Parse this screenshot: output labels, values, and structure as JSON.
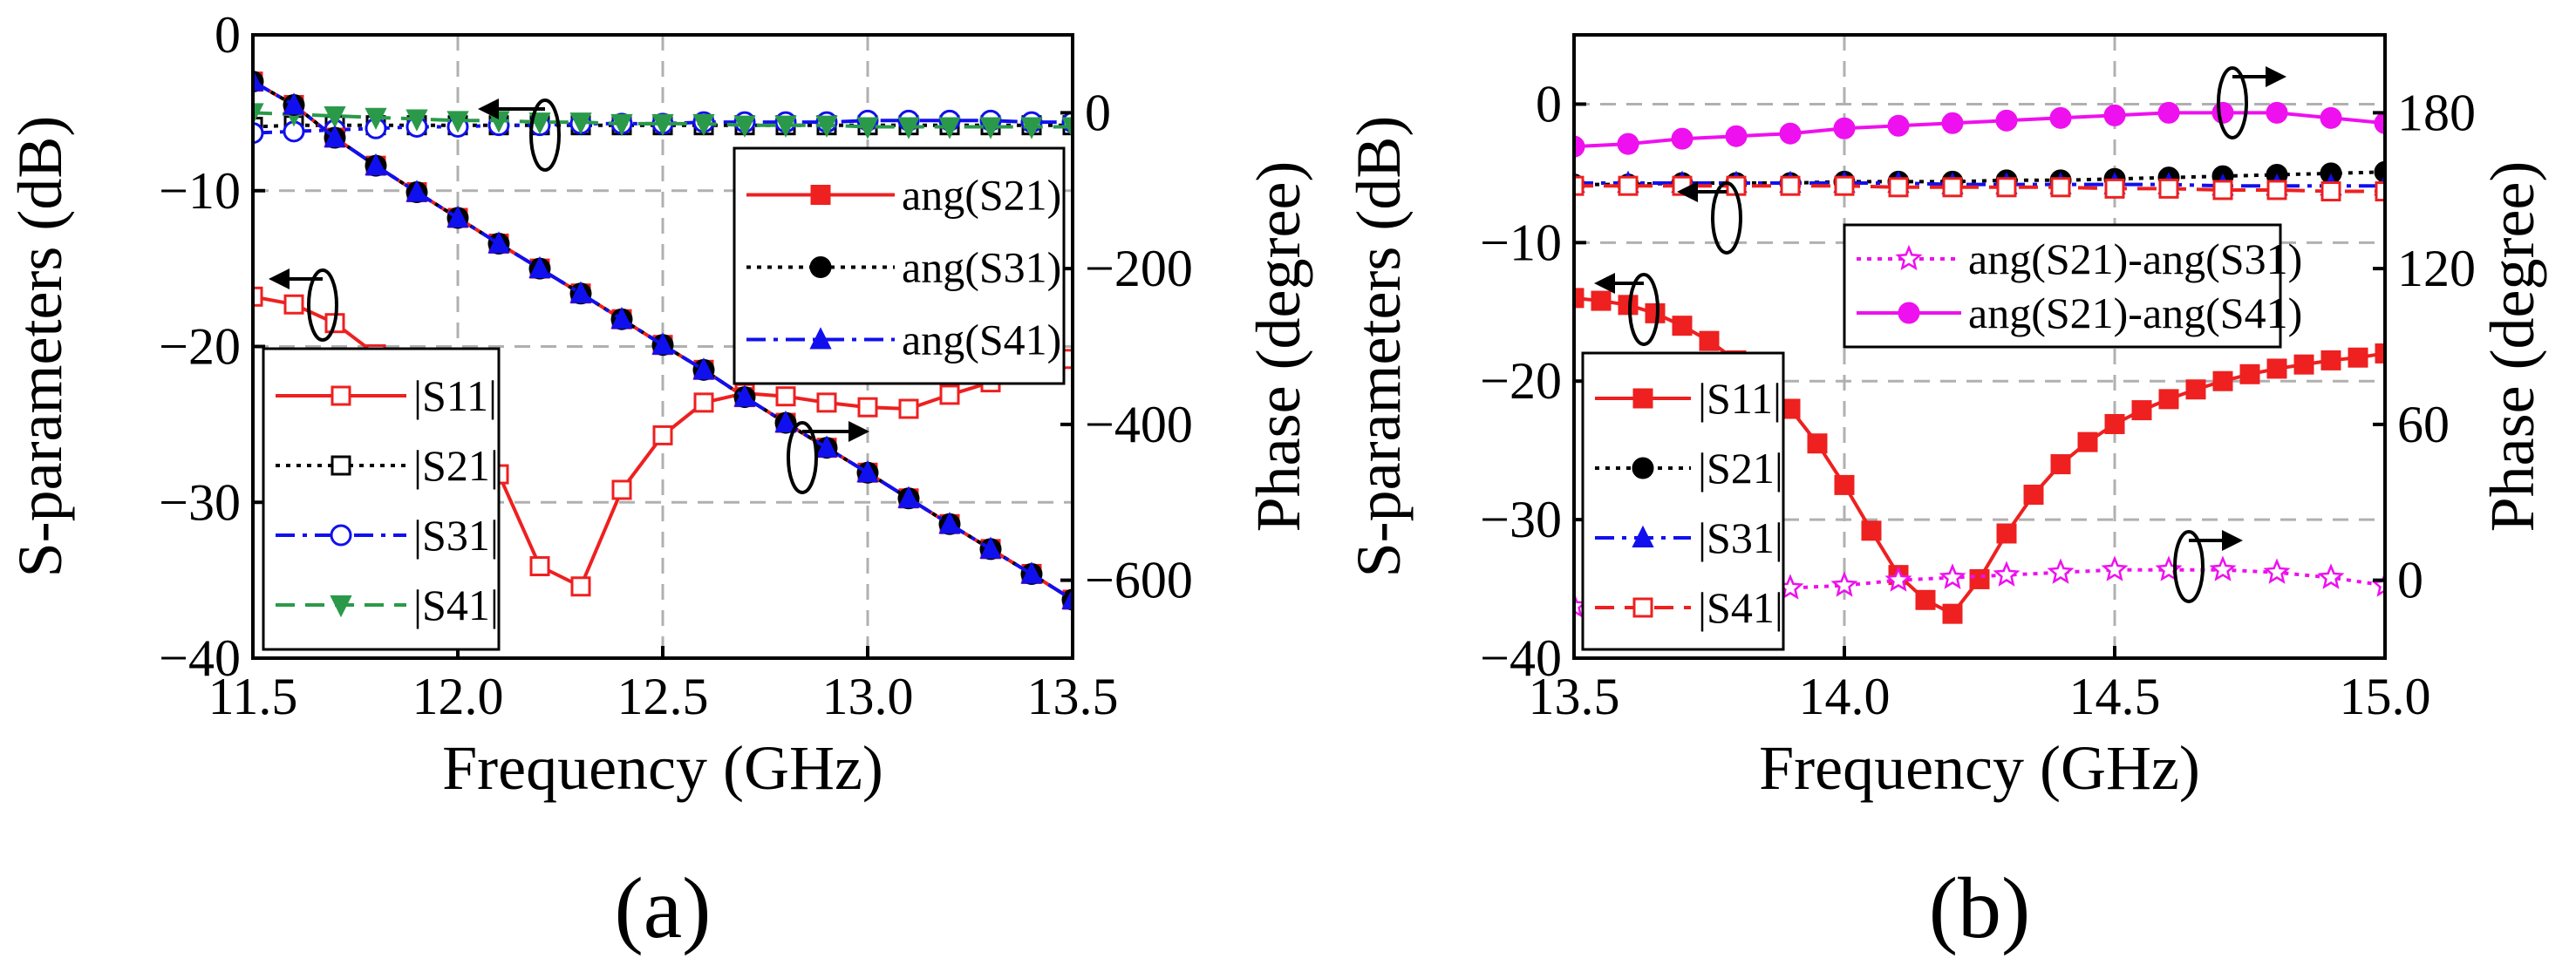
{
  "colors": {
    "red": "#ee2020",
    "black": "#000000",
    "blue": "#1010ee",
    "green": "#2a9a4a",
    "magenta": "#ee10ee",
    "grid": "#b0b0b0"
  },
  "chart_data": [
    {
      "type": "line",
      "caption": "(a)",
      "xlabel": "Frequency (GHz)",
      "ylabel": "S-parameters (dB)",
      "y2label": "Phase (degree)",
      "xlim": [
        11.5,
        13.5
      ],
      "ylim": [
        -40,
        0
      ],
      "y2lim": [
        -700,
        100
      ],
      "xticks": [
        "11.5",
        "12.0",
        "12.5",
        "13.0",
        "13.5"
      ],
      "yticks": [
        "0",
        "−10",
        "−20",
        "−30",
        "−40"
      ],
      "y2ticks": [
        "0",
        "−200",
        "−400",
        "−600"
      ],
      "grid": true,
      "legends": [
        {
          "position": "lower-left",
          "entries": [
            "|S11|",
            "|S21|",
            "|S31|",
            "|S41|"
          ]
        },
        {
          "position": "upper-right",
          "entries": [
            "ang(S21)",
            "ang(S31)",
            "ang(S41)"
          ]
        }
      ],
      "series": [
        {
          "name": "|S11|",
          "axis": "left",
          "color": "red",
          "dash": "solid",
          "marker": "square-open",
          "x": [
            11.5,
            11.6,
            11.7,
            11.8,
            11.9,
            12.0,
            12.1,
            12.2,
            12.3,
            12.4,
            12.5,
            12.6,
            12.7,
            12.8,
            12.9,
            13.0,
            13.1,
            13.2,
            13.3,
            13.4,
            13.5
          ],
          "y": [
            -16.8,
            -17.3,
            -18.5,
            -20.5,
            -22.6,
            -25.4,
            -28.2,
            -34.1,
            -35.4,
            -29.2,
            -25.7,
            -23.6,
            -23.0,
            -23.2,
            -23.6,
            -23.9,
            -24.0,
            -23.1,
            -22.3,
            -21.8,
            -20.8
          ]
        },
        {
          "name": "|S21|",
          "axis": "left",
          "color": "black",
          "dash": "dotted",
          "marker": "square-open",
          "x": [
            11.5,
            11.6,
            11.7,
            11.8,
            11.9,
            12.0,
            12.1,
            12.2,
            12.3,
            12.4,
            12.5,
            12.6,
            12.7,
            12.8,
            12.9,
            13.0,
            13.1,
            13.2,
            13.3,
            13.4,
            13.5
          ],
          "y": [
            -5.9,
            -5.8,
            -5.8,
            -5.8,
            -5.8,
            -5.8,
            -5.8,
            -5.8,
            -5.8,
            -5.8,
            -5.8,
            -5.8,
            -5.8,
            -5.8,
            -5.8,
            -5.8,
            -5.8,
            -5.8,
            -5.8,
            -5.8,
            -5.8
          ]
        },
        {
          "name": "|S31|",
          "axis": "left",
          "color": "blue",
          "dash": "dashdot",
          "marker": "circle-open",
          "x": [
            11.5,
            11.6,
            11.7,
            11.8,
            11.9,
            12.0,
            12.1,
            12.2,
            12.3,
            12.4,
            12.5,
            12.6,
            12.7,
            12.8,
            12.9,
            13.0,
            13.1,
            13.2,
            13.3,
            13.4,
            13.5
          ],
          "y": [
            -6.3,
            -6.2,
            -6.1,
            -6.0,
            -5.9,
            -5.9,
            -5.8,
            -5.8,
            -5.7,
            -5.7,
            -5.7,
            -5.6,
            -5.6,
            -5.6,
            -5.6,
            -5.5,
            -5.5,
            -5.5,
            -5.5,
            -5.6,
            -5.6
          ]
        },
        {
          "name": "|S41|",
          "axis": "left",
          "color": "green",
          "dash": "dashed",
          "marker": "triangle-down",
          "x": [
            11.5,
            11.6,
            11.7,
            11.8,
            11.9,
            12.0,
            12.1,
            12.2,
            12.3,
            12.4,
            12.5,
            12.6,
            12.7,
            12.8,
            12.9,
            13.0,
            13.1,
            13.2,
            13.3,
            13.4,
            13.5
          ],
          "y": [
            -5.0,
            -5.1,
            -5.2,
            -5.3,
            -5.4,
            -5.5,
            -5.5,
            -5.6,
            -5.6,
            -5.7,
            -5.7,
            -5.7,
            -5.8,
            -5.8,
            -5.8,
            -5.9,
            -5.9,
            -5.9,
            -5.9,
            -5.9,
            -5.9
          ]
        },
        {
          "name": "ang(S21)",
          "axis": "right",
          "color": "red",
          "dash": "solid",
          "marker": "square-filled",
          "x": [
            11.5,
            11.6,
            11.7,
            11.8,
            11.9,
            12.0,
            12.1,
            12.2,
            12.3,
            12.4,
            12.5,
            12.6,
            12.7,
            12.8,
            12.9,
            13.0,
            13.1,
            13.2,
            13.3,
            13.4,
            13.5
          ],
          "y": [
            40,
            10,
            -32,
            -68,
            -102,
            -135,
            -168,
            -200,
            -232,
            -265,
            -298,
            -330,
            -365,
            -398,
            -430,
            -462,
            -495,
            -528,
            -560,
            -592,
            -625
          ]
        },
        {
          "name": "ang(S31)",
          "axis": "right",
          "color": "black",
          "dash": "dotted",
          "marker": "circle-filled",
          "x": [
            11.5,
            11.6,
            11.7,
            11.8,
            11.9,
            12.0,
            12.1,
            12.2,
            12.3,
            12.4,
            12.5,
            12.6,
            12.7,
            12.8,
            12.9,
            13.0,
            13.1,
            13.2,
            13.3,
            13.4,
            13.5
          ],
          "y": [
            40,
            10,
            -32,
            -68,
            -102,
            -135,
            -168,
            -200,
            -232,
            -265,
            -298,
            -330,
            -365,
            -398,
            -430,
            -462,
            -495,
            -528,
            -560,
            -592,
            -625
          ]
        },
        {
          "name": "ang(S41)",
          "axis": "right",
          "color": "blue",
          "dash": "dashdot",
          "marker": "triangle-up",
          "x": [
            11.5,
            11.6,
            11.7,
            11.8,
            11.9,
            12.0,
            12.1,
            12.2,
            12.3,
            12.4,
            12.5,
            12.6,
            12.7,
            12.8,
            12.9,
            13.0,
            13.1,
            13.2,
            13.3,
            13.4,
            13.5
          ],
          "y": [
            40,
            10,
            -32,
            -68,
            -102,
            -135,
            -168,
            -200,
            -232,
            -265,
            -298,
            -330,
            -365,
            -398,
            -430,
            -462,
            -495,
            -528,
            -560,
            -592,
            -625
          ]
        }
      ]
    },
    {
      "type": "line",
      "caption": "(b)",
      "xlabel": "Frequency (GHz)",
      "ylabel": "S-parameters (dB)",
      "y2label": "Phase (degree)",
      "xlim": [
        13.5,
        15.0
      ],
      "ylim": [
        -40,
        5
      ],
      "y2lim": [
        -30,
        210
      ],
      "xticks": [
        "13.5",
        "14.0",
        "14.5",
        "15.0"
      ],
      "yticks": [
        "0",
        "−10",
        "−20",
        "−30",
        "−40"
      ],
      "y2ticks": [
        "0",
        "60",
        "120",
        "180"
      ],
      "grid": true,
      "legends": [
        {
          "position": "upper-right",
          "entries": [
            "ang(S21)-ang(S31)",
            "ang(S21)-ang(S41)"
          ]
        },
        {
          "position": "lower-left",
          "entries": [
            "|S11|",
            "|S21|",
            "|S31|",
            "|S41|"
          ]
        }
      ],
      "series": [
        {
          "name": "|S11|",
          "axis": "left",
          "color": "red",
          "dash": "solid",
          "marker": "square-filled",
          "x": [
            13.5,
            13.55,
            13.6,
            13.65,
            13.7,
            13.75,
            13.8,
            13.85,
            13.9,
            13.95,
            14.0,
            14.05,
            14.1,
            14.15,
            14.2,
            14.25,
            14.3,
            14.35,
            14.4,
            14.45,
            14.5,
            14.55,
            14.6,
            14.65,
            14.7,
            14.75,
            14.8,
            14.85,
            14.9,
            14.95,
            15.0
          ],
          "y": [
            -14.0,
            -14.2,
            -14.5,
            -15.1,
            -16.0,
            -17.1,
            -18.5,
            -20.0,
            -22.0,
            -24.5,
            -27.5,
            -30.8,
            -34.0,
            -35.8,
            -36.8,
            -34.3,
            -31.0,
            -28.2,
            -26.0,
            -24.4,
            -23.1,
            -22.1,
            -21.3,
            -20.6,
            -20.0,
            -19.5,
            -19.1,
            -18.8,
            -18.5,
            -18.3,
            -18.0
          ]
        },
        {
          "name": "|S21|",
          "axis": "left",
          "color": "black",
          "dash": "dotted",
          "marker": "circle-filled",
          "x": [
            13.5,
            13.6,
            13.7,
            13.8,
            13.9,
            14.0,
            14.1,
            14.2,
            14.3,
            14.4,
            14.5,
            14.6,
            14.7,
            14.8,
            14.9,
            15.0
          ],
          "y": [
            -5.8,
            -5.8,
            -5.7,
            -5.7,
            -5.7,
            -5.6,
            -5.6,
            -5.6,
            -5.5,
            -5.5,
            -5.4,
            -5.3,
            -5.2,
            -5.1,
            -5.0,
            -4.9
          ]
        },
        {
          "name": "|S31|",
          "axis": "left",
          "color": "blue",
          "dash": "dashdot",
          "marker": "triangle-up",
          "x": [
            13.5,
            13.6,
            13.7,
            13.8,
            13.9,
            14.0,
            14.1,
            14.2,
            14.3,
            14.4,
            14.5,
            14.6,
            14.7,
            14.8,
            14.9,
            15.0
          ],
          "y": [
            -5.7,
            -5.7,
            -5.7,
            -5.7,
            -5.7,
            -5.7,
            -5.7,
            -5.8,
            -5.8,
            -5.8,
            -5.8,
            -5.8,
            -5.9,
            -5.9,
            -5.9,
            -5.9
          ]
        },
        {
          "name": "|S41|",
          "axis": "left",
          "color": "red",
          "dash": "dashed",
          "marker": "square-open",
          "x": [
            13.5,
            13.6,
            13.7,
            13.8,
            13.9,
            14.0,
            14.1,
            14.2,
            14.3,
            14.4,
            14.5,
            14.6,
            14.7,
            14.8,
            14.9,
            15.0
          ],
          "y": [
            -5.9,
            -5.9,
            -5.9,
            -5.9,
            -5.9,
            -5.9,
            -6.0,
            -6.0,
            -6.0,
            -6.0,
            -6.1,
            -6.1,
            -6.2,
            -6.2,
            -6.3,
            -6.3
          ]
        },
        {
          "name": "ang(S21)-ang(S31)",
          "axis": "right",
          "color": "magenta",
          "dash": "dotted",
          "marker": "star-open",
          "x": [
            13.5,
            13.6,
            13.7,
            13.8,
            13.9,
            14.0,
            14.1,
            14.2,
            14.3,
            14.4,
            14.5,
            14.6,
            14.7,
            14.8,
            14.9,
            15.0
          ],
          "y": [
            -10,
            -8,
            -6,
            -4,
            -3,
            -2,
            0,
            1,
            2,
            3,
            4,
            4,
            4,
            3,
            1,
            -2
          ]
        },
        {
          "name": "ang(S21)-ang(S41)",
          "axis": "right",
          "color": "magenta",
          "dash": "solid",
          "marker": "circle-filled",
          "x": [
            13.5,
            13.6,
            13.7,
            13.8,
            13.9,
            14.0,
            14.1,
            14.2,
            14.3,
            14.4,
            14.5,
            14.6,
            14.7,
            14.8,
            14.9,
            15.0
          ],
          "y": [
            167,
            168,
            170,
            171,
            172,
            174,
            175,
            176,
            177,
            178,
            179,
            180,
            180,
            180,
            178,
            176
          ]
        }
      ]
    }
  ]
}
